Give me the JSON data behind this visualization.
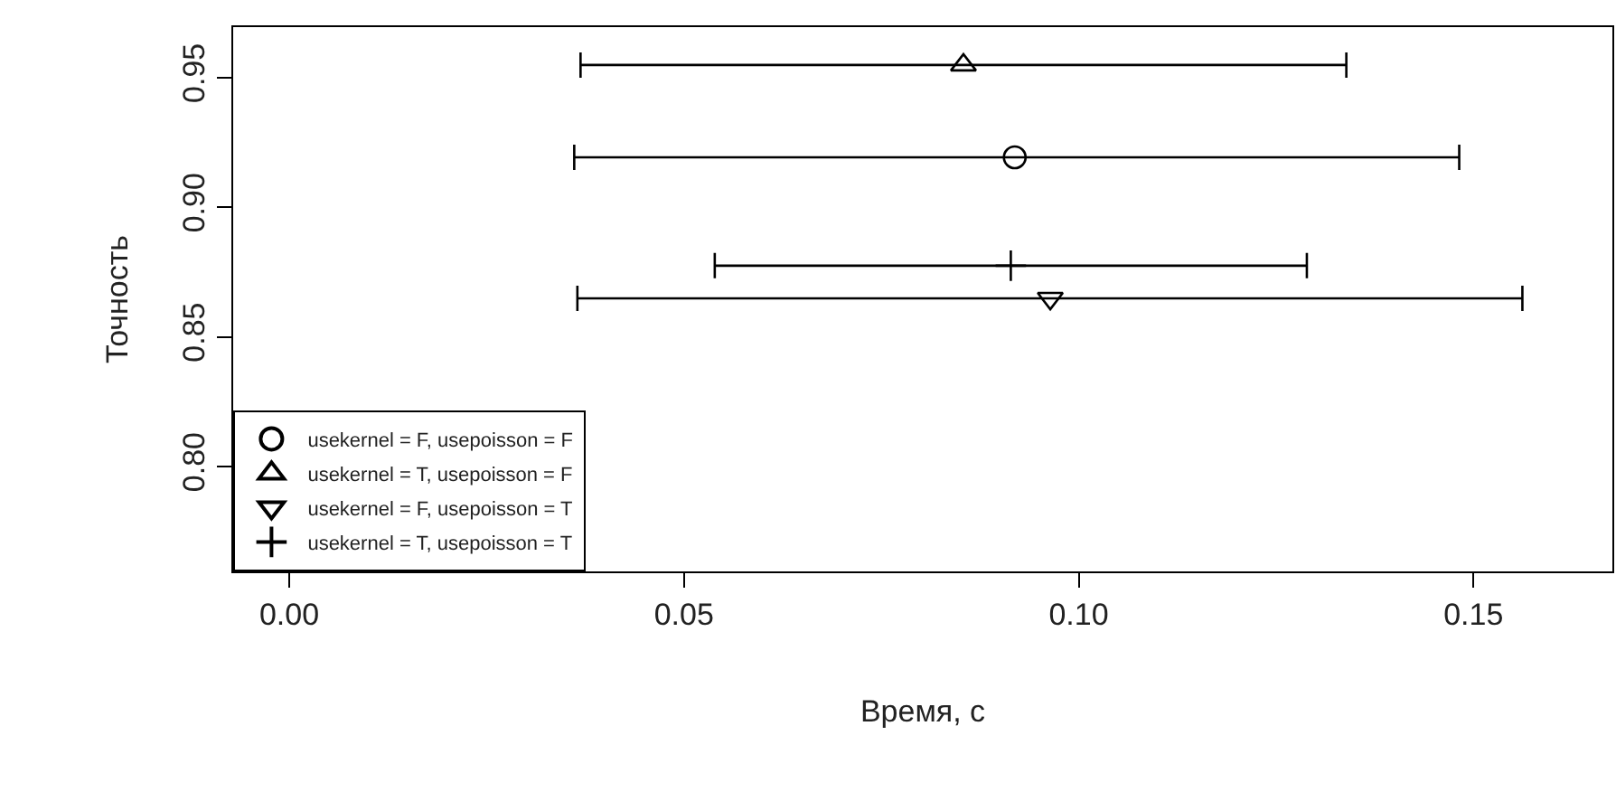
{
  "chart_data": {
    "type": "scatter",
    "xlabel": "Время, с",
    "ylabel": "Точность",
    "xlim": [
      -0.0071,
      0.1676
    ],
    "ylim": [
      0.7596,
      0.9695
    ],
    "xticks": [
      {
        "value": 0,
        "label": "0.00"
      },
      0.05,
      {
        "value": 0.1,
        "label": "0.10"
      },
      0.15
    ],
    "yticks": [
      {
        "value": 0.8,
        "label": "0.80"
      },
      0.85,
      {
        "value": 0.9,
        "label": "0.90"
      },
      0.95
    ],
    "legend": "bottom left",
    "series": [
      {
        "name": "usekernel = F, usepoisson = F",
        "color": "#000000",
        "marker": "circle",
        "x": [
          0.0919
        ],
        "values": [
          0.9193
        ],
        "xerrors": [
          [
            0.0361,
            0.1482
          ]
        ]
      },
      {
        "name": "usekernel = T, usepoisson = F",
        "color": "#000000",
        "marker": "triangle",
        "x": [
          0.0854
        ],
        "values": [
          0.9549
        ],
        "xerrors": [
          [
            0.0369,
            0.1339
          ]
        ]
      },
      {
        "name": "usekernel = F, usepoisson = T",
        "color": "#000000",
        "marker": "triangle-down",
        "x": [
          0.0964
        ],
        "values": [
          0.8649
        ],
        "xerrors": [
          [
            0.0365,
            0.1562
          ]
        ]
      },
      {
        "name": "usekernel = T, usepoisson = T",
        "color": "#000000",
        "marker": "cross",
        "x": [
          0.0914
        ],
        "values": [
          0.8775
        ],
        "xerrors": [
          [
            0.0539,
            0.1289
          ]
        ]
      }
    ]
  }
}
